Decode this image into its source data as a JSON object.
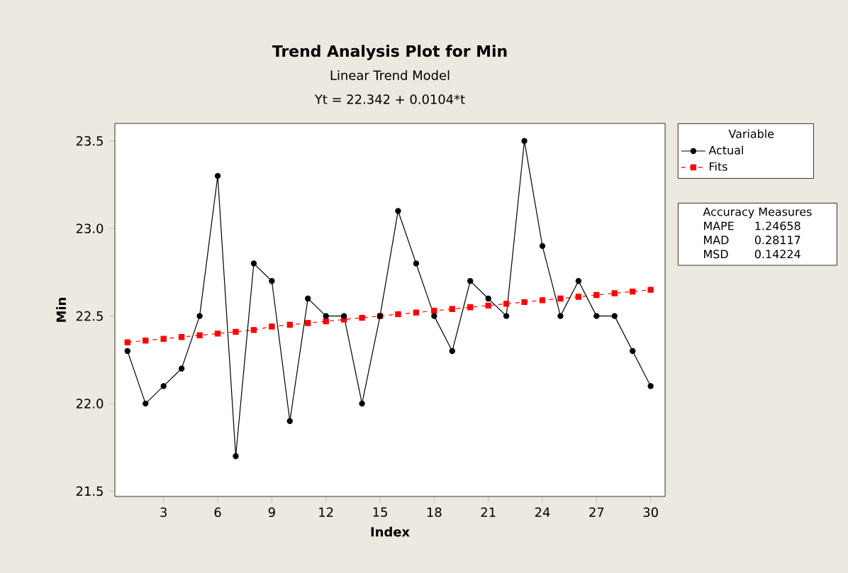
{
  "chart_data": {
    "type": "line",
    "title": "Trend Analysis Plot for Min",
    "subtitle": "Linear Trend Model",
    "xlabel": "Index",
    "ylabel": "Min",
    "legend_title": "Variable",
    "annotations": [
      "Yt = 22.342 + 0.0104*t",
      "Accuracy Measures",
      "MAPE",
      "1.24658",
      "MAD",
      "0.28117",
      "MSD",
      "0.14224"
    ],
    "x": [
      1,
      2,
      3,
      4,
      5,
      6,
      7,
      8,
      9,
      10,
      11,
      12,
      13,
      14,
      15,
      16,
      17,
      18,
      19,
      20,
      21,
      22,
      23,
      24,
      25,
      26,
      27,
      28,
      29,
      30
    ],
    "series": [
      {
        "name": "Actual",
        "color": "#000000",
        "marker": "circle",
        "line_style": "solid",
        "values": [
          22.3,
          22.0,
          22.1,
          22.2,
          22.5,
          23.3,
          21.7,
          22.8,
          22.7,
          21.9,
          22.6,
          22.5,
          22.5,
          22.0,
          22.5,
          23.1,
          22.8,
          22.5,
          22.3,
          22.7,
          22.6,
          22.5,
          23.5,
          22.9,
          22.5,
          22.7,
          22.5,
          22.5,
          22.3,
          22.1
        ]
      },
      {
        "name": "Fits",
        "color": "#ff0000",
        "marker": "square",
        "line_style": "dashed",
        "values": [
          22.35,
          22.36,
          22.37,
          22.38,
          22.39,
          22.4,
          22.41,
          22.42,
          22.44,
          22.45,
          22.46,
          22.47,
          22.48,
          22.49,
          22.5,
          22.51,
          22.52,
          22.53,
          22.54,
          22.55,
          22.56,
          22.57,
          22.58,
          22.59,
          22.6,
          22.61,
          22.62,
          22.63,
          22.64,
          22.65
        ]
      }
    ],
    "xlim": [
      0.3,
      30.8
    ],
    "ylim": [
      21.47,
      23.6
    ],
    "xticks": [
      3,
      6,
      9,
      12,
      15,
      18,
      21,
      24,
      27,
      30
    ],
    "yticks": [
      {
        "value": 21.5,
        "label": "21.5"
      },
      {
        "value": 22,
        "label": "22.0"
      },
      {
        "value": 22.5,
        "label": "22.5"
      },
      {
        "value": 23,
        "label": "23.0"
      },
      {
        "value": 23.5,
        "label": "23.5"
      }
    ],
    "grid": false,
    "legend": "right"
  }
}
